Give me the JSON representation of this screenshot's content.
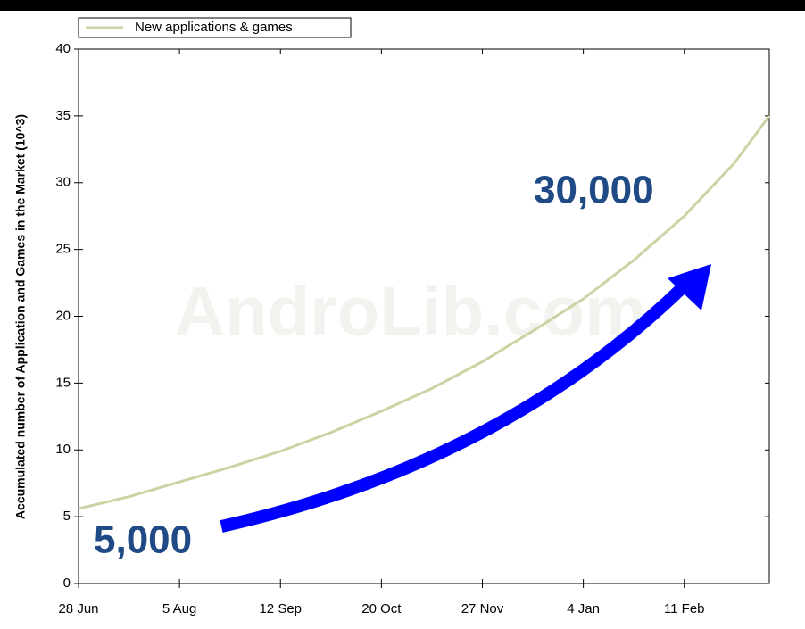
{
  "chart_data": {
    "type": "line",
    "y_label": "Accumulated number of Application and Games in the Market (10^3)",
    "watermark": "AndroLib.com",
    "annotations": [
      "5,000",
      "30,000"
    ],
    "legend": "top-left",
    "x": [
      0,
      19,
      38,
      57,
      76,
      95,
      114,
      133,
      152,
      171,
      190,
      209,
      228,
      247,
      260
    ],
    "series": [
      {
        "name": "New applications & games",
        "color": "#c9d4a3",
        "values": [
          5.6,
          6.5,
          7.6,
          8.7,
          9.9,
          11.3,
          12.9,
          14.6,
          16.6,
          18.9,
          21.3,
          24.2,
          27.5,
          31.5,
          35
        ]
      }
    ],
    "xlim": [
      0,
      260
    ],
    "xticks": [
      {
        "value": 0,
        "label": "28 Jun"
      },
      {
        "value": 38,
        "label": "5 Aug"
      },
      {
        "value": 76,
        "label": "12 Sep"
      },
      {
        "value": 114,
        "label": "20 Oct"
      },
      {
        "value": 152,
        "label": "27 Nov"
      },
      {
        "value": 190,
        "label": "4 Jan"
      },
      {
        "value": 228,
        "label": "11 Feb"
      }
    ],
    "ylim": [
      0,
      40
    ],
    "yticks": [
      0,
      5,
      10,
      15,
      20,
      25,
      30,
      35,
      40
    ]
  }
}
